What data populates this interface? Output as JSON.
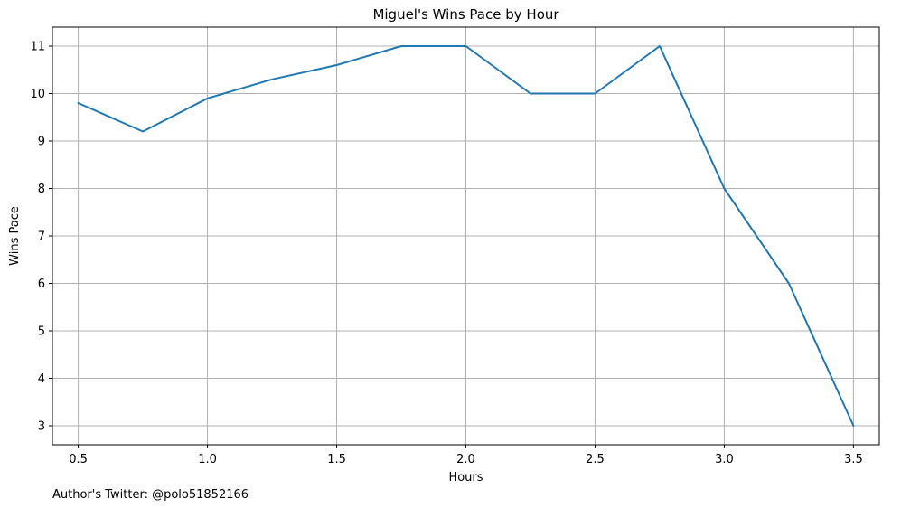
{
  "chart_data": {
    "type": "line",
    "title": "Miguel's Wins Pace by Hour",
    "xlabel": "Hours",
    "ylabel": "Wins Pace",
    "xlim": [
      0.4,
      3.6
    ],
    "ylim": [
      2.6,
      11.4
    ],
    "xticks": [
      0.5,
      1.0,
      1.5,
      2.0,
      2.5,
      3.0,
      3.5
    ],
    "xtick_labels": [
      "0.5",
      "1.0",
      "1.5",
      "2.0",
      "2.5",
      "3.0",
      "3.5"
    ],
    "yticks": [
      3,
      4,
      5,
      6,
      7,
      8,
      9,
      10,
      11
    ],
    "ytick_labels": [
      "3",
      "4",
      "5",
      "6",
      "7",
      "8",
      "9",
      "10",
      "11"
    ],
    "grid": true,
    "series": [
      {
        "color": "#1f77b4",
        "x": [
          0.5,
          0.75,
          1.0,
          1.25,
          1.5,
          1.75,
          2.0,
          2.25,
          2.5,
          2.75,
          3.0,
          3.25,
          3.5
        ],
        "y": [
          9.8,
          9.2,
          9.9,
          10.3,
          10.6,
          11.0,
          11.0,
          10.0,
          10.0,
          11.0,
          8.0,
          6.0,
          3.0
        ]
      }
    ]
  },
  "footnote": "Author's Twitter: @polo51852166"
}
